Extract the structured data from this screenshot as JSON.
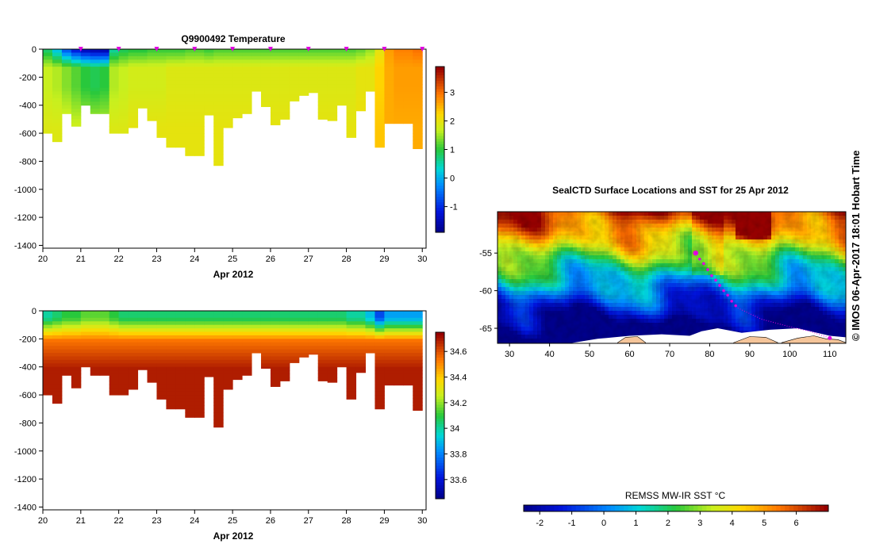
{
  "chart_data": [
    {
      "type": "heatmap",
      "id": "temperature",
      "title": "Q9900492  Temperature",
      "xlabel": "Apr 2012",
      "ylabel": "",
      "xlim": [
        20,
        30.1
      ],
      "ylim": [
        -1420,
        0
      ],
      "x_ticks": [
        "20",
        "21",
        "22",
        "23",
        "24",
        "25",
        "26",
        "27",
        "28",
        "29",
        "30"
      ],
      "y_ticks": [
        "0",
        "-200",
        "-400",
        "-600",
        "-800",
        "-1000",
        "-1200",
        "-1400"
      ],
      "colorbar": {
        "range": [
          -1.9,
          3.9
        ],
        "ticks": [
          "-1",
          "0",
          "1",
          "2",
          "3"
        ]
      },
      "profile_markers_x": [
        21,
        22,
        23,
        24,
        25,
        26,
        27,
        28,
        29,
        30
      ],
      "profiles": [
        {
          "t": 20.0,
          "depth": 600,
          "top": 0.8,
          "mid": 1.7,
          "deep": 1.9
        },
        {
          "t": 20.25,
          "depth": 660,
          "top": 0.2,
          "mid": 1.6,
          "deep": 1.9
        },
        {
          "t": 20.5,
          "depth": 460,
          "top": -0.6,
          "mid": 1.4,
          "deep": 1.9
        },
        {
          "t": 20.75,
          "depth": 550,
          "top": -1.1,
          "mid": 1.2,
          "deep": 1.8
        },
        {
          "t": 21.0,
          "depth": 400,
          "top": -1.4,
          "mid": 1.0,
          "deep": 1.7
        },
        {
          "t": 21.25,
          "depth": 460,
          "top": -1.5,
          "mid": 0.9,
          "deep": 1.7
        },
        {
          "t": 21.5,
          "depth": 460,
          "top": -1.5,
          "mid": 1.0,
          "deep": 1.7
        },
        {
          "t": 21.75,
          "depth": 600,
          "top": 0.6,
          "mid": 1.6,
          "deep": 1.9
        },
        {
          "t": 22.0,
          "depth": 600,
          "top": 0.9,
          "mid": 1.7,
          "deep": 1.9
        },
        {
          "t": 22.25,
          "depth": 560,
          "top": 1.0,
          "mid": 1.8,
          "deep": 2.0
        },
        {
          "t": 22.5,
          "depth": 420,
          "top": 1.0,
          "mid": 1.8,
          "deep": 2.0
        },
        {
          "t": 22.75,
          "depth": 510,
          "top": 1.1,
          "mid": 1.8,
          "deep": 2.0
        },
        {
          "t": 23.0,
          "depth": 630,
          "top": 1.1,
          "mid": 1.8,
          "deep": 2.0
        },
        {
          "t": 23.25,
          "depth": 700,
          "top": 1.1,
          "mid": 1.9,
          "deep": 2.0
        },
        {
          "t": 23.5,
          "depth": 700,
          "top": 1.1,
          "mid": 1.9,
          "deep": 2.0
        },
        {
          "t": 23.75,
          "depth": 760,
          "top": 1.2,
          "mid": 1.9,
          "deep": 2.0
        },
        {
          "t": 24.0,
          "depth": 760,
          "top": 1.2,
          "mid": 1.9,
          "deep": 2.0
        },
        {
          "t": 24.25,
          "depth": 470,
          "top": 1.1,
          "mid": 1.9,
          "deep": 2.0
        },
        {
          "t": 24.5,
          "depth": 830,
          "top": 1.2,
          "mid": 1.9,
          "deep": 2.0
        },
        {
          "t": 24.75,
          "depth": 560,
          "top": 1.2,
          "mid": 1.9,
          "deep": 2.0
        },
        {
          "t": 25.0,
          "depth": 490,
          "top": 1.2,
          "mid": 1.9,
          "deep": 2.0
        },
        {
          "t": 25.25,
          "depth": 460,
          "top": 1.2,
          "mid": 1.9,
          "deep": 2.0
        },
        {
          "t": 25.5,
          "depth": 300,
          "top": 1.2,
          "mid": 1.9,
          "deep": 2.0
        },
        {
          "t": 25.75,
          "depth": 410,
          "top": 1.2,
          "mid": 1.9,
          "deep": 2.0
        },
        {
          "t": 26.0,
          "depth": 540,
          "top": 1.2,
          "mid": 1.9,
          "deep": 2.0
        },
        {
          "t": 26.25,
          "depth": 500,
          "top": 1.2,
          "mid": 1.9,
          "deep": 2.0
        },
        {
          "t": 26.5,
          "depth": 370,
          "top": 1.2,
          "mid": 1.9,
          "deep": 2.0
        },
        {
          "t": 26.75,
          "depth": 330,
          "top": 1.2,
          "mid": 1.9,
          "deep": 2.0
        },
        {
          "t": 27.0,
          "depth": 310,
          "top": 1.2,
          "mid": 1.9,
          "deep": 2.0
        },
        {
          "t": 27.25,
          "depth": 500,
          "top": 1.2,
          "mid": 1.9,
          "deep": 2.0
        },
        {
          "t": 27.5,
          "depth": 510,
          "top": 1.2,
          "mid": 1.9,
          "deep": 2.0
        },
        {
          "t": 27.75,
          "depth": 400,
          "top": 1.2,
          "mid": 1.9,
          "deep": 2.0
        },
        {
          "t": 28.0,
          "depth": 630,
          "top": 1.2,
          "mid": 1.9,
          "deep": 2.0
        },
        {
          "t": 28.25,
          "depth": 440,
          "top": 1.3,
          "mid": 2.0,
          "deep": 2.1
        },
        {
          "t": 28.5,
          "depth": 300,
          "top": 1.5,
          "mid": 2.0,
          "deep": 2.1
        },
        {
          "t": 28.75,
          "depth": 700,
          "top": 2.0,
          "mid": 2.3,
          "deep": 2.4
        },
        {
          "t": 29.0,
          "depth": 530,
          "top": 2.7,
          "mid": 2.6,
          "deep": 2.6
        },
        {
          "t": 29.25,
          "depth": 530,
          "top": 2.9,
          "mid": 2.7,
          "deep": 2.6
        },
        {
          "t": 29.5,
          "depth": 530,
          "top": 2.9,
          "mid": 2.7,
          "deep": 2.6
        },
        {
          "t": 29.75,
          "depth": 710,
          "top": 3.0,
          "mid": 2.7,
          "deep": 2.6
        }
      ]
    },
    {
      "type": "heatmap",
      "id": "salinity",
      "title": "",
      "xlabel": "Apr 2012",
      "ylabel": "",
      "xlim": [
        20,
        30.1
      ],
      "ylim": [
        -1420,
        0
      ],
      "x_ticks": [
        "20",
        "21",
        "22",
        "23",
        "24",
        "25",
        "26",
        "27",
        "28",
        "29",
        "30"
      ],
      "y_ticks": [
        "0",
        "-200",
        "-400",
        "-600",
        "-800",
        "-1000",
        "-1200",
        "-1400"
      ],
      "colorbar": {
        "range": [
          33.45,
          34.75
        ],
        "ticks": [
          "33.6",
          "33.8",
          "34",
          "34.2",
          "34.4",
          "34.6"
        ]
      },
      "top_salinity": [
        34.0,
        34.05,
        34.1,
        34.1,
        34.15,
        34.15,
        34.15,
        34.1,
        34.05,
        34.05,
        34.05,
        34.05,
        34.05,
        34.05,
        34.05,
        34.05,
        34.05,
        34.05,
        34.05,
        34.05,
        34.05,
        34.05,
        34.05,
        34.05,
        34.05,
        34.05,
        34.05,
        34.05,
        34.05,
        34.05,
        34.05,
        34.05,
        34.0,
        34.0,
        33.9,
        33.7,
        33.85,
        33.85,
        33.85,
        33.85
      ]
    },
    {
      "type": "heatmap",
      "id": "sst_map",
      "title": "SealCTD Surface Locations and SST for 25 Apr 2012",
      "xlabel": "",
      "ylabel": "",
      "xlim": [
        27,
        114
      ],
      "ylim": [
        -67,
        -49.5
      ],
      "x_ticks": [
        "30",
        "40",
        "50",
        "60",
        "70",
        "80",
        "90",
        "100",
        "110"
      ],
      "y_ticks": [
        "-55",
        "-60",
        "-65"
      ],
      "colorbar": {
        "label": "REMSS MW-IR SST °C",
        "range": [
          -2.5,
          7
        ],
        "ticks": [
          "-2",
          "-1",
          "0",
          "1",
          "2",
          "3",
          "4",
          "5",
          "6"
        ]
      },
      "track": [
        [
          76.5,
          -55.0
        ],
        [
          77.5,
          -55.8
        ],
        [
          78.5,
          -56.4
        ],
        [
          79.5,
          -57.2
        ],
        [
          80.5,
          -58.0
        ],
        [
          81.5,
          -58.6
        ],
        [
          82.5,
          -59.3
        ],
        [
          83.5,
          -60.0
        ],
        [
          84.5,
          -60.6
        ],
        [
          85.5,
          -61.4
        ],
        [
          86.5,
          -62.0
        ]
      ],
      "secondary_track": [
        [
          87,
          -62.3
        ],
        [
          93,
          -63.8
        ],
        [
          100,
          -64.8
        ],
        [
          105,
          -65.4
        ],
        [
          110,
          -66.3
        ]
      ]
    }
  ],
  "watermark": "© IMOS 06-Apr-2017 18:01 Hobart Time",
  "colors": {
    "marker": "#e000e0",
    "land": "#f5c59a",
    "ice": "#ffffff",
    "background": "#ffffff"
  }
}
